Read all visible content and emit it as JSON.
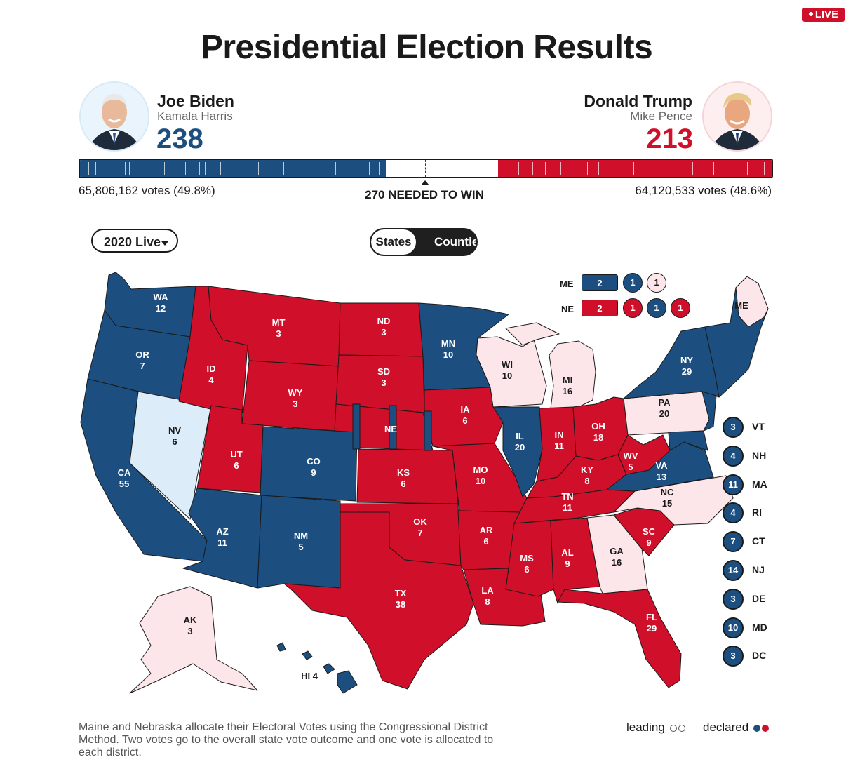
{
  "badge": {
    "live_label": "LIVE"
  },
  "title": "Presidential Election Results",
  "candidates": {
    "dem": {
      "name": "Joe Biden",
      "running_mate": "Kamala Harris",
      "electoral_votes": "238",
      "popular_votes": "65,806,162 votes (49.8%)",
      "color": "#1c4f80"
    },
    "rep": {
      "name": "Donald Trump",
      "running_mate": "Mike Pence",
      "electoral_votes": "213",
      "popular_votes": "64,120,533 votes (48.6%)",
      "color": "#d0102b"
    }
  },
  "progress": {
    "total": 538,
    "dem_share": 0.442,
    "rep_share": 0.396,
    "needed_label": "270 NEEDED TO WIN"
  },
  "controls": {
    "year_select": "2020 Live",
    "view_toggle": {
      "active": "States",
      "inactive": "Counties"
    }
  },
  "colors": {
    "dem_declared": "#1c4f80",
    "dem_leading": "#dcecf9",
    "rep_declared": "#d0102b",
    "rep_leading": "#fde6e9",
    "border": "#1a1a1a"
  },
  "split_states": {
    "ME": {
      "label": "ME",
      "statewide": "2",
      "districts": [
        "1",
        "1"
      ]
    },
    "NE": {
      "label": "NE",
      "statewide": "2",
      "districts": [
        "1",
        "1",
        "1"
      ]
    }
  },
  "map_labels": {
    "WA": [
      "WA",
      "12"
    ],
    "OR": [
      "OR",
      "7"
    ],
    "CA": [
      "CA",
      "55"
    ],
    "NV": [
      "NV",
      "6"
    ],
    "ID": [
      "ID",
      "4"
    ],
    "MT": [
      "MT",
      "3"
    ],
    "WY": [
      "WY",
      "3"
    ],
    "UT": [
      "UT",
      "6"
    ],
    "CO": [
      "CO",
      "9"
    ],
    "AZ": [
      "AZ",
      "11"
    ],
    "NM": [
      "NM",
      "5"
    ],
    "ND": [
      "ND",
      "3"
    ],
    "SD": [
      "SD",
      "3"
    ],
    "NE": [
      "NE",
      ""
    ],
    "KS": [
      "KS",
      "6"
    ],
    "OK": [
      "OK",
      "7"
    ],
    "TX": [
      "TX",
      "38"
    ],
    "MN": [
      "MN",
      "10"
    ],
    "IA": [
      "IA",
      "6"
    ],
    "MO": [
      "MO",
      "10"
    ],
    "AR": [
      "AR",
      "6"
    ],
    "LA": [
      "LA",
      "8"
    ],
    "WI": [
      "WI",
      "10"
    ],
    "IL": [
      "IL",
      "20"
    ],
    "MI": [
      "MI",
      "16"
    ],
    "IN": [
      "IN",
      "11"
    ],
    "OH": [
      "OH",
      "18"
    ],
    "KY": [
      "KY",
      "8"
    ],
    "TN": [
      "TN",
      "11"
    ],
    "MS": [
      "MS",
      "6"
    ],
    "AL": [
      "AL",
      "9"
    ],
    "GA": [
      "GA",
      "16"
    ],
    "FL": [
      "FL",
      "29"
    ],
    "SC": [
      "SC",
      "9"
    ],
    "NC": [
      "NC",
      "15"
    ],
    "VA": [
      "VA",
      "13"
    ],
    "WV": [
      "WV",
      "5"
    ],
    "PA": [
      "PA",
      "20"
    ],
    "NY": [
      "NY",
      "29"
    ],
    "ME": [
      "ME",
      ""
    ],
    "AK": [
      "AK",
      "3"
    ],
    "HI": [
      "HI 4",
      ""
    ]
  },
  "small_states": [
    {
      "ev": "3",
      "abbr": "VT"
    },
    {
      "ev": "4",
      "abbr": "NH"
    },
    {
      "ev": "11",
      "abbr": "MA"
    },
    {
      "ev": "4",
      "abbr": "RI"
    },
    {
      "ev": "7",
      "abbr": "CT"
    },
    {
      "ev": "14",
      "abbr": "NJ"
    },
    {
      "ev": "3",
      "abbr": "DE"
    },
    {
      "ev": "10",
      "abbr": "MD"
    },
    {
      "ev": "3",
      "abbr": "DC"
    }
  ],
  "footer": {
    "note": "Maine and Nebraska allocate their Electoral Votes using the Congressional District Method. Two votes go to the overall state vote outcome and one vote is allocated to each district.",
    "legend_leading": "leading",
    "legend_declared": "declared"
  }
}
